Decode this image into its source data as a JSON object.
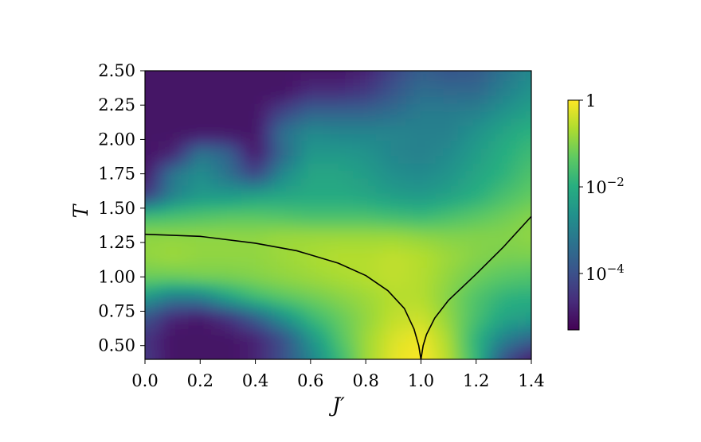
{
  "chart_data": {
    "type": "heatmap",
    "xlabel": "J′",
    "ylabel": "T",
    "xlim": [
      0.0,
      1.4
    ],
    "ylim": [
      0.4,
      2.5
    ],
    "x_ticks": [
      {
        "value": 0.0,
        "label": "0.0"
      },
      {
        "value": 0.2,
        "label": "0.2"
      },
      {
        "value": 0.4,
        "label": "0.4"
      },
      {
        "value": 0.6,
        "label": "0.6"
      },
      {
        "value": 0.8,
        "label": "0.8"
      },
      {
        "value": 1.0,
        "label": "1.0"
      },
      {
        "value": 1.2,
        "label": "1.2"
      },
      {
        "value": 1.4,
        "label": "1.4"
      }
    ],
    "y_ticks": [
      {
        "value": 0.5,
        "label": "0.50"
      },
      {
        "value": 0.75,
        "label": "0.75"
      },
      {
        "value": 1.0,
        "label": "1.00"
      },
      {
        "value": 1.25,
        "label": "1.25"
      },
      {
        "value": 1.5,
        "label": "1.50"
      },
      {
        "value": 1.75,
        "label": "1.75"
      },
      {
        "value": 2.0,
        "label": "2.00"
      },
      {
        "value": 2.25,
        "label": "2.25"
      },
      {
        "value": 2.5,
        "label": "2.50"
      }
    ],
    "colormap": "viridis",
    "colorscale": "log",
    "color_range": [
      5e-06,
      1
    ],
    "colorbar_ticks": [
      {
        "value": 1,
        "base": "1",
        "exp": ""
      },
      {
        "value": 0.01,
        "base": "10",
        "exp": "−2"
      },
      {
        "value": 0.0001,
        "base": "10",
        "exp": "−4"
      }
    ],
    "log10_intensity_grid": {
      "x": [
        0.0,
        0.1,
        0.2,
        0.3,
        0.4,
        0.5,
        0.6,
        0.7,
        0.8,
        0.9,
        1.0,
        1.1,
        1.2,
        1.3,
        1.4
      ],
      "y": [
        0.4,
        0.55,
        0.7,
        0.85,
        1.0,
        1.15,
        1.3,
        1.45,
        1.6,
        1.75,
        1.9,
        2.05,
        2.2,
        2.35,
        2.5
      ],
      "z": [
        [
          -4.4,
          -5.0,
          -5.0,
          -5.0,
          -4.8,
          -4.0,
          -3.0,
          -1.8,
          -0.8,
          -0.2,
          0.0,
          -0.6,
          -1.8,
          -4.0,
          -5.0
        ],
        [
          -4.5,
          -5.0,
          -5.0,
          -5.0,
          -4.8,
          -4.0,
          -2.6,
          -1.5,
          -0.8,
          -0.3,
          -0.1,
          -0.7,
          -1.9,
          -3.0,
          -3.6
        ],
        [
          -4.0,
          -4.8,
          -5.0,
          -4.6,
          -3.8,
          -2.7,
          -1.8,
          -1.3,
          -0.9,
          -0.5,
          -0.4,
          -0.9,
          -1.6,
          -2.2,
          -2.4
        ],
        [
          -2.5,
          -3.2,
          -3.1,
          -2.3,
          -1.7,
          -1.4,
          -1.2,
          -1.0,
          -0.8,
          -0.6,
          -0.6,
          -1.0,
          -1.5,
          -1.9,
          -2.0
        ],
        [
          -1.2,
          -1.2,
          -1.1,
          -1.1,
          -1.0,
          -0.9,
          -0.8,
          -0.7,
          -0.6,
          -0.5,
          -0.6,
          -0.9,
          -1.2,
          -1.4,
          -1.5
        ],
        [
          -0.9,
          -0.8,
          -0.9,
          -0.9,
          -0.9,
          -0.8,
          -0.7,
          -0.6,
          -0.6,
          -0.5,
          -0.6,
          -0.8,
          -1.0,
          -1.1,
          -1.1
        ],
        [
          -0.9,
          -0.9,
          -0.9,
          -0.9,
          -0.9,
          -0.8,
          -0.8,
          -0.8,
          -0.8,
          -0.8,
          -0.9,
          -1.0,
          -1.0,
          -1.0,
          -0.9
        ],
        [
          -1.7,
          -1.6,
          -1.5,
          -1.4,
          -1.4,
          -1.5,
          -1.6,
          -1.6,
          -1.6,
          -1.7,
          -1.8,
          -1.6,
          -1.4,
          -1.2,
          -1.0
        ],
        [
          -4.5,
          -3.0,
          -2.5,
          -2.5,
          -2.3,
          -2.2,
          -2.1,
          -2.1,
          -2.2,
          -2.4,
          -2.5,
          -2.3,
          -2.0,
          -1.6,
          -1.3
        ],
        [
          -5.0,
          -3.2,
          -2.7,
          -3.3,
          -4.2,
          -2.8,
          -2.2,
          -2.2,
          -2.4,
          -2.7,
          -2.8,
          -2.6,
          -2.2,
          -1.9,
          -1.5
        ],
        [
          -5.0,
          -4.8,
          -3.2,
          -3.6,
          -5.0,
          -3.5,
          -2.5,
          -2.5,
          -2.6,
          -2.9,
          -3.0,
          -2.8,
          -2.4,
          -2.0,
          -1.7
        ],
        [
          -5.0,
          -5.0,
          -5.0,
          -5.0,
          -5.0,
          -3.3,
          -2.8,
          -2.9,
          -2.9,
          -2.9,
          -3.0,
          -3.0,
          -2.6,
          -2.2,
          -1.9
        ],
        [
          -5.0,
          -5.0,
          -5.0,
          -5.0,
          -5.0,
          -4.2,
          -3.6,
          -3.6,
          -3.6,
          -3.4,
          -3.1,
          -3.1,
          -3.0,
          -2.6,
          -2.3
        ],
        [
          -5.0,
          -5.0,
          -5.0,
          -5.0,
          -5.0,
          -5.0,
          -4.6,
          -4.6,
          -4.4,
          -3.9,
          -3.4,
          -3.5,
          -3.5,
          -3.0,
          -2.6
        ],
        [
          -5.0,
          -5.0,
          -5.0,
          -5.0,
          -5.0,
          -5.0,
          -5.0,
          -5.0,
          -4.8,
          -4.2,
          -3.7,
          -3.9,
          -3.8,
          -3.3,
          -2.8
        ]
      ]
    },
    "curves": [
      {
        "points": [
          [
            0.0,
            1.31
          ],
          [
            0.2,
            1.295
          ],
          [
            0.4,
            1.245
          ],
          [
            0.55,
            1.19
          ],
          [
            0.7,
            1.1
          ],
          [
            0.8,
            1.01
          ],
          [
            0.88,
            0.9
          ],
          [
            0.94,
            0.77
          ],
          [
            0.975,
            0.62
          ],
          [
            0.992,
            0.5
          ],
          [
            1.0,
            0.4
          ]
        ],
        "color": "#000000"
      },
      {
        "points": [
          [
            1.0,
            0.4
          ],
          [
            1.008,
            0.5
          ],
          [
            1.02,
            0.58
          ],
          [
            1.05,
            0.7
          ],
          [
            1.1,
            0.83
          ],
          [
            1.2,
            1.02
          ],
          [
            1.3,
            1.22
          ],
          [
            1.4,
            1.44
          ]
        ],
        "color": "#000000"
      }
    ]
  }
}
